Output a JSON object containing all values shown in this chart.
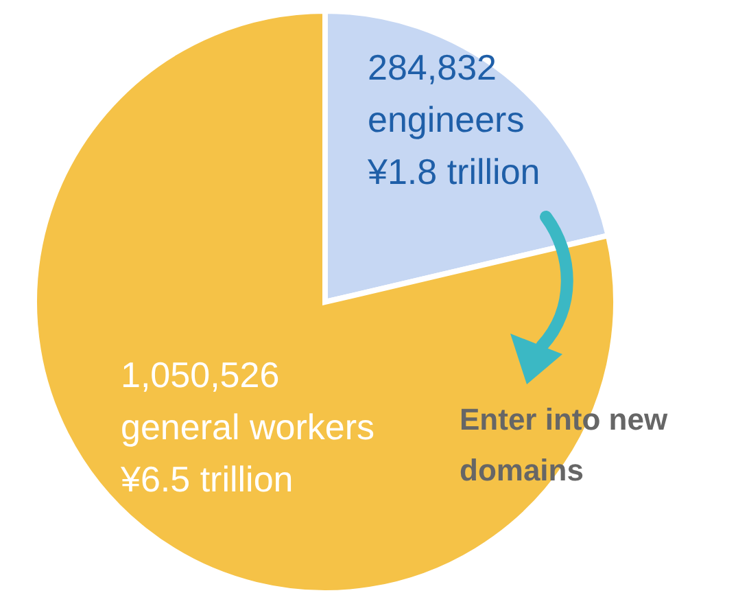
{
  "chart_data": {
    "type": "pie",
    "categories": [
      "engineers",
      "general workers"
    ],
    "values": [
      284832,
      1050526
    ],
    "value_labels": [
      "284,832",
      "1,050,526"
    ],
    "colors": [
      "#c6d7f3",
      "#f5c247"
    ],
    "annotations": [
      "¥1.8 trillion",
      "¥6.5 trillion",
      "Enter into new domains"
    ]
  }
}
